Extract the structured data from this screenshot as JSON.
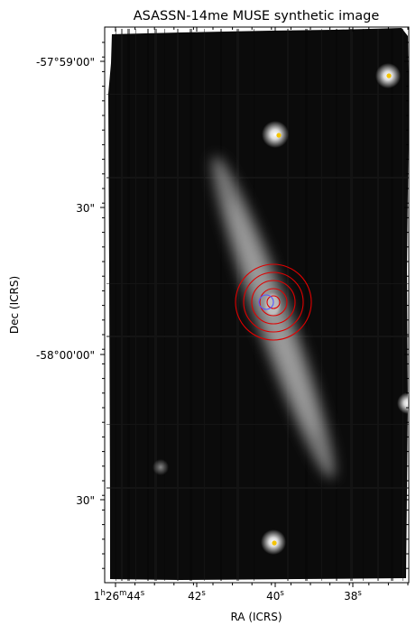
{
  "figure": {
    "title": "ASASSN-14me MUSE synthetic image",
    "x_axis": {
      "label": "RA (ICRS)",
      "ticks": [
        {
          "h": "1",
          "m": "26",
          "s": "44"
        },
        {
          "s": "42"
        },
        {
          "s": "40"
        },
        {
          "s": "38"
        }
      ]
    },
    "y_axis": {
      "label": "Dec (ICRS)",
      "ticks": [
        "-57°59'00\"",
        "30\"",
        "-58°00'00\"",
        "30\""
      ]
    }
  },
  "colors": {
    "background": "#0b0b0b",
    "galaxy": "#9a9a9a",
    "marker": "#f5c400",
    "contour": "#e00000",
    "host_circle": "#5555ff"
  }
}
